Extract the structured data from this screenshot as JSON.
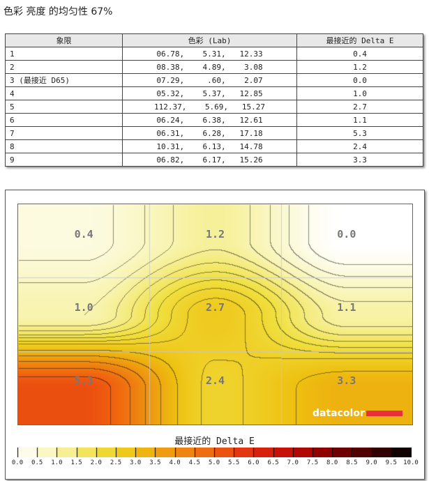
{
  "title": "色彩 亮度 的均匀性 67%",
  "table": {
    "headers": [
      "象限",
      "色彩 (Lab)",
      "最接近的 Delta E"
    ],
    "rows": [
      [
        "1",
        "06.78,    5.31,   12.33",
        "0.4"
      ],
      [
        "2",
        "08.38,    4.89,    3.08",
        "1.2"
      ],
      [
        "3 (最接近 D65)",
        "07.29,     .60,    2.07",
        "0.0"
      ],
      [
        "4",
        "05.32,    5.37,   12.85",
        "1.0"
      ],
      [
        "5",
        "112.37,    5.69,   15.27",
        "2.7"
      ],
      [
        "6",
        "06.24,    6.38,   12.61",
        "1.1"
      ],
      [
        "7",
        "06.31,    6.28,   17.18",
        "5.3"
      ],
      [
        "8",
        "10.31,    6.13,   14.78",
        "2.4"
      ],
      [
        "9",
        "06.82,    6.17,   15.26",
        "3.3"
      ]
    ]
  },
  "chart_data": {
    "type": "heatmap",
    "grid": [
      [
        0.4,
        1.2,
        0.0
      ],
      [
        1.0,
        2.7,
        1.1
      ],
      [
        5.3,
        2.4,
        3.3
      ]
    ],
    "labels": [
      [
        "0.4",
        "1.2",
        "0.0"
      ],
      [
        "1.0",
        "2.7",
        "1.1"
      ],
      [
        "5.3",
        "2.4",
        "3.3"
      ]
    ],
    "colorbar_title": "最接近的 Delta E",
    "colorbar_range": [
      0,
      10
    ],
    "colorbar_ticks": [
      "0.0",
      "0.5",
      "1.0",
      "1.5",
      "2.0",
      "2.5",
      "3.0",
      "3.5",
      "4.0",
      "4.5",
      "5.0",
      "5.5",
      "6.0",
      "6.5",
      "7.0",
      "7.5",
      "8.0",
      "8.5",
      "9.0",
      "9.5",
      "10.0"
    ],
    "colorscale": [
      [
        0,
        "#ffffff"
      ],
      [
        1,
        "#f8f4b0"
      ],
      [
        2,
        "#f0e040"
      ],
      [
        3,
        "#eec010"
      ],
      [
        4,
        "#ee9010"
      ],
      [
        5,
        "#f06010"
      ],
      [
        6,
        "#e02810"
      ],
      [
        7,
        "#c00808"
      ],
      [
        8,
        "#800000"
      ],
      [
        9,
        "#400000"
      ],
      [
        10,
        "#000000"
      ]
    ]
  },
  "logo": "datacolor"
}
